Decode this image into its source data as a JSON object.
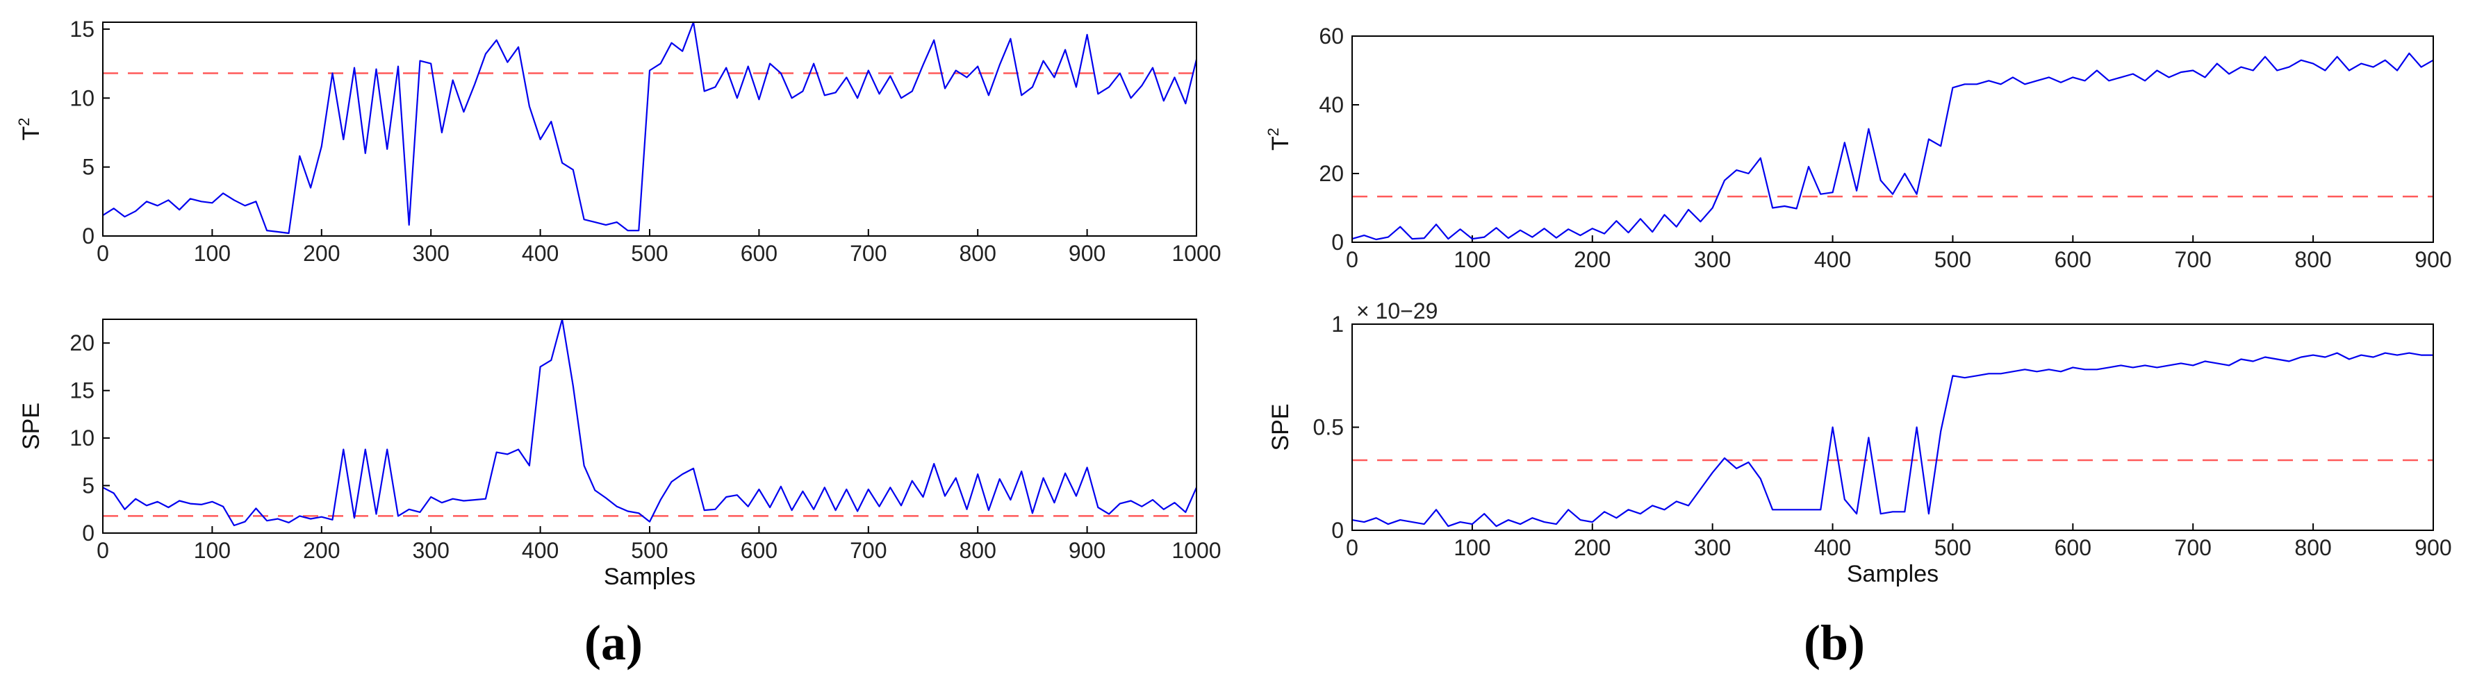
{
  "panels": [
    {
      "label": "(a)"
    },
    {
      "label": "(b)"
    }
  ],
  "colors": {
    "series": "#0000ee",
    "threshold": "#ff5a5a"
  },
  "chart_data": [
    {
      "type": "line",
      "panel": "(a)",
      "xlabel": "",
      "ylabel_base": "T",
      "ylabel_sup": "2",
      "xlim": [
        0,
        1000
      ],
      "ylim": [
        0,
        15.5
      ],
      "xticks": [
        0,
        100,
        200,
        300,
        400,
        500,
        600,
        700,
        800,
        900,
        1000
      ],
      "yticks": [
        0,
        5,
        10,
        15
      ],
      "threshold": 11.8,
      "x": [
        0,
        10,
        20,
        30,
        40,
        50,
        60,
        70,
        80,
        90,
        100,
        110,
        120,
        130,
        140,
        150,
        160,
        170,
        180,
        190,
        200,
        210,
        220,
        230,
        240,
        250,
        260,
        270,
        280,
        290,
        300,
        310,
        320,
        330,
        340,
        350,
        360,
        370,
        380,
        390,
        400,
        410,
        420,
        430,
        440,
        450,
        460,
        470,
        480,
        490,
        500,
        510,
        520,
        530,
        540,
        550,
        560,
        570,
        580,
        590,
        600,
        610,
        620,
        630,
        640,
        650,
        660,
        670,
        680,
        690,
        700,
        710,
        720,
        730,
        740,
        750,
        760,
        770,
        780,
        790,
        800,
        810,
        820,
        830,
        840,
        850,
        860,
        870,
        880,
        890,
        900,
        910,
        920,
        930,
        940,
        950,
        960,
        970,
        980,
        990,
        1000
      ],
      "y": [
        1.5,
        2,
        1.4,
        1.8,
        2.5,
        2.2,
        2.6,
        1.9,
        2.7,
        2.5,
        2.4,
        3.1,
        2.6,
        2.2,
        2.5,
        0.4,
        0.3,
        0.2,
        5.8,
        3.5,
        6.5,
        11.8,
        7,
        12.2,
        6,
        12.1,
        6.3,
        12.3,
        0.8,
        12.7,
        12.5,
        7.5,
        11.3,
        9,
        11,
        13.2,
        14.2,
        12.6,
        13.7,
        9.4,
        7,
        8.3,
        5.3,
        4.8,
        1.2,
        1,
        0.8,
        1,
        0.4,
        0.4,
        12,
        12.5,
        14,
        13.4,
        15.5,
        10.5,
        10.8,
        12.2,
        10,
        12.3,
        9.9,
        12.5,
        11.8,
        10,
        10.5,
        12.5,
        10.2,
        10.4,
        11.5,
        10,
        12,
        10.3,
        11.6,
        10,
        10.5,
        12.4,
        14.2,
        10.7,
        12,
        11.5,
        12.3,
        10.2,
        12.4,
        14.3,
        10.2,
        10.8,
        12.7,
        11.5,
        13.5,
        10.8,
        14.6,
        10.3,
        10.8,
        11.8,
        10,
        10.9,
        12.2,
        9.8,
        11.5,
        9.6,
        12.8
      ]
    },
    {
      "type": "line",
      "panel": "(a)",
      "xlabel": "Samples",
      "ylabel": "SPE",
      "xlim": [
        0,
        1000
      ],
      "ylim": [
        0,
        22.5
      ],
      "xticks": [
        0,
        100,
        200,
        300,
        400,
        500,
        600,
        700,
        800,
        900,
        1000
      ],
      "yticks": [
        0,
        5,
        10,
        15,
        20
      ],
      "threshold": 1.8,
      "x": [
        0,
        10,
        20,
        30,
        40,
        50,
        60,
        70,
        80,
        90,
        100,
        110,
        120,
        130,
        140,
        150,
        160,
        170,
        180,
        190,
        200,
        210,
        220,
        230,
        240,
        250,
        260,
        270,
        280,
        290,
        300,
        310,
        320,
        330,
        340,
        350,
        360,
        370,
        380,
        390,
        400,
        410,
        420,
        430,
        440,
        450,
        460,
        470,
        480,
        490,
        500,
        510,
        520,
        530,
        540,
        550,
        560,
        570,
        580,
        590,
        600,
        610,
        620,
        630,
        640,
        650,
        660,
        670,
        680,
        690,
        700,
        710,
        720,
        730,
        740,
        750,
        760,
        770,
        780,
        790,
        800,
        810,
        820,
        830,
        840,
        850,
        860,
        870,
        880,
        890,
        900,
        910,
        920,
        930,
        940,
        950,
        960,
        970,
        980,
        990,
        1000
      ],
      "y": [
        4.8,
        4.2,
        2.5,
        3.6,
        2.9,
        3.3,
        2.7,
        3.4,
        3.1,
        3,
        3.3,
        2.8,
        0.8,
        1.2,
        2.6,
        1.3,
        1.5,
        1.1,
        1.8,
        1.5,
        1.7,
        1.4,
        8.8,
        1.6,
        8.8,
        2,
        8.8,
        1.8,
        2.5,
        2.2,
        3.8,
        3.2,
        3.6,
        3.4,
        3.5,
        3.6,
        8.5,
        8.3,
        8.8,
        7.1,
        17.5,
        18.2,
        22.5,
        15.5,
        7.1,
        4.5,
        3.7,
        2.8,
        2.3,
        2.1,
        1.2,
        3.5,
        5.4,
        6.2,
        6.8,
        2.4,
        2.5,
        3.8,
        4,
        2.8,
        4.6,
        2.7,
        4.9,
        2.4,
        4.4,
        2.5,
        4.8,
        2.4,
        4.6,
        2.3,
        4.6,
        2.8,
        4.8,
        2.9,
        5.5,
        3.8,
        7.3,
        3.9,
        5.8,
        2.5,
        6.2,
        2.4,
        5.7,
        3.5,
        6.5,
        2.1,
        5.8,
        3.2,
        6.3,
        3.9,
        6.9,
        2.7,
        2,
        3.1,
        3.4,
        2.8,
        3.5,
        2.5,
        3.2,
        2.2,
        4.8
      ]
    },
    {
      "type": "line",
      "panel": "(b)",
      "xlabel": "",
      "ylabel_base": "T",
      "ylabel_sup": "2",
      "xlim": [
        0,
        900
      ],
      "ylim": [
        0,
        60
      ],
      "xticks": [
        0,
        100,
        200,
        300,
        400,
        500,
        600,
        700,
        800,
        900
      ],
      "yticks": [
        0,
        20,
        40,
        60
      ],
      "threshold": 13.3,
      "x": [
        0,
        10,
        20,
        30,
        40,
        50,
        60,
        70,
        80,
        90,
        100,
        110,
        120,
        130,
        140,
        150,
        160,
        170,
        180,
        190,
        200,
        210,
        220,
        230,
        240,
        250,
        260,
        270,
        280,
        290,
        300,
        310,
        320,
        330,
        340,
        350,
        360,
        370,
        380,
        390,
        400,
        410,
        420,
        430,
        440,
        450,
        460,
        470,
        480,
        490,
        500,
        510,
        520,
        530,
        540,
        550,
        560,
        570,
        580,
        590,
        600,
        610,
        620,
        630,
        640,
        650,
        660,
        670,
        680,
        690,
        700,
        710,
        720,
        730,
        740,
        750,
        760,
        770,
        780,
        790,
        800,
        810,
        820,
        830,
        840,
        850,
        860,
        870,
        880,
        890,
        900
      ],
      "y": [
        1,
        2,
        0.8,
        1.5,
        4.5,
        1,
        1.2,
        5.2,
        1,
        3.8,
        1,
        1.5,
        4.2,
        1.2,
        3.5,
        1.5,
        4,
        1.3,
        3.8,
        2,
        4,
        2.5,
        6.2,
        2.8,
        6.8,
        3,
        8,
        4.5,
        9.5,
        6,
        10,
        18,
        21,
        20,
        24.5,
        10,
        10.5,
        9.8,
        22,
        14,
        14.5,
        29,
        15,
        33,
        18,
        14,
        20,
        14,
        30,
        28,
        45,
        46,
        46,
        47,
        46,
        48,
        46,
        47,
        48,
        46.5,
        48,
        47,
        50,
        47,
        48,
        49,
        47,
        50,
        48,
        49.5,
        50,
        48,
        52,
        49,
        51,
        50,
        54,
        50,
        51,
        53,
        52,
        50,
        54,
        50,
        52,
        51,
        53,
        50,
        55,
        51,
        53
      ]
    },
    {
      "type": "line",
      "panel": "(b)",
      "xlabel": "Samples",
      "ylabel": "SPE",
      "yscale_note": "× 10−29",
      "xlim": [
        0,
        900
      ],
      "ylim": [
        0,
        1
      ],
      "xticks": [
        0,
        100,
        200,
        300,
        400,
        500,
        600,
        700,
        800,
        900
      ],
      "yticks": [
        0,
        0.5,
        1
      ],
      "threshold": 0.34,
      "x": [
        0,
        10,
        20,
        30,
        40,
        50,
        60,
        70,
        80,
        90,
        100,
        110,
        120,
        130,
        140,
        150,
        160,
        170,
        180,
        190,
        200,
        210,
        220,
        230,
        240,
        250,
        260,
        270,
        280,
        290,
        300,
        310,
        320,
        330,
        340,
        350,
        360,
        370,
        380,
        390,
        400,
        410,
        420,
        430,
        440,
        450,
        460,
        470,
        480,
        490,
        500,
        510,
        520,
        530,
        540,
        550,
        560,
        570,
        580,
        590,
        600,
        610,
        620,
        630,
        640,
        650,
        660,
        670,
        680,
        690,
        700,
        710,
        720,
        730,
        740,
        750,
        760,
        770,
        780,
        790,
        800,
        810,
        820,
        830,
        840,
        850,
        860,
        870,
        880,
        890,
        900
      ],
      "y": [
        0.05,
        0.04,
        0.06,
        0.03,
        0.05,
        0.04,
        0.03,
        0.1,
        0.02,
        0.04,
        0.03,
        0.08,
        0.02,
        0.05,
        0.03,
        0.06,
        0.04,
        0.03,
        0.1,
        0.05,
        0.04,
        0.09,
        0.06,
        0.1,
        0.08,
        0.12,
        0.1,
        0.14,
        0.12,
        0.2,
        0.28,
        0.35,
        0.3,
        0.33,
        0.25,
        0.1,
        0.1,
        0.1,
        0.1,
        0.1,
        0.5,
        0.15,
        0.08,
        0.45,
        0.08,
        0.09,
        0.09,
        0.5,
        0.08,
        0.48,
        0.75,
        0.74,
        0.75,
        0.76,
        0.76,
        0.77,
        0.78,
        0.77,
        0.78,
        0.77,
        0.79,
        0.78,
        0.78,
        0.79,
        0.8,
        0.79,
        0.8,
        0.79,
        0.8,
        0.81,
        0.8,
        0.82,
        0.81,
        0.8,
        0.83,
        0.82,
        0.84,
        0.83,
        0.82,
        0.84,
        0.85,
        0.84,
        0.86,
        0.83,
        0.85,
        0.84,
        0.86,
        0.85,
        0.86,
        0.85,
        0.85
      ]
    }
  ]
}
